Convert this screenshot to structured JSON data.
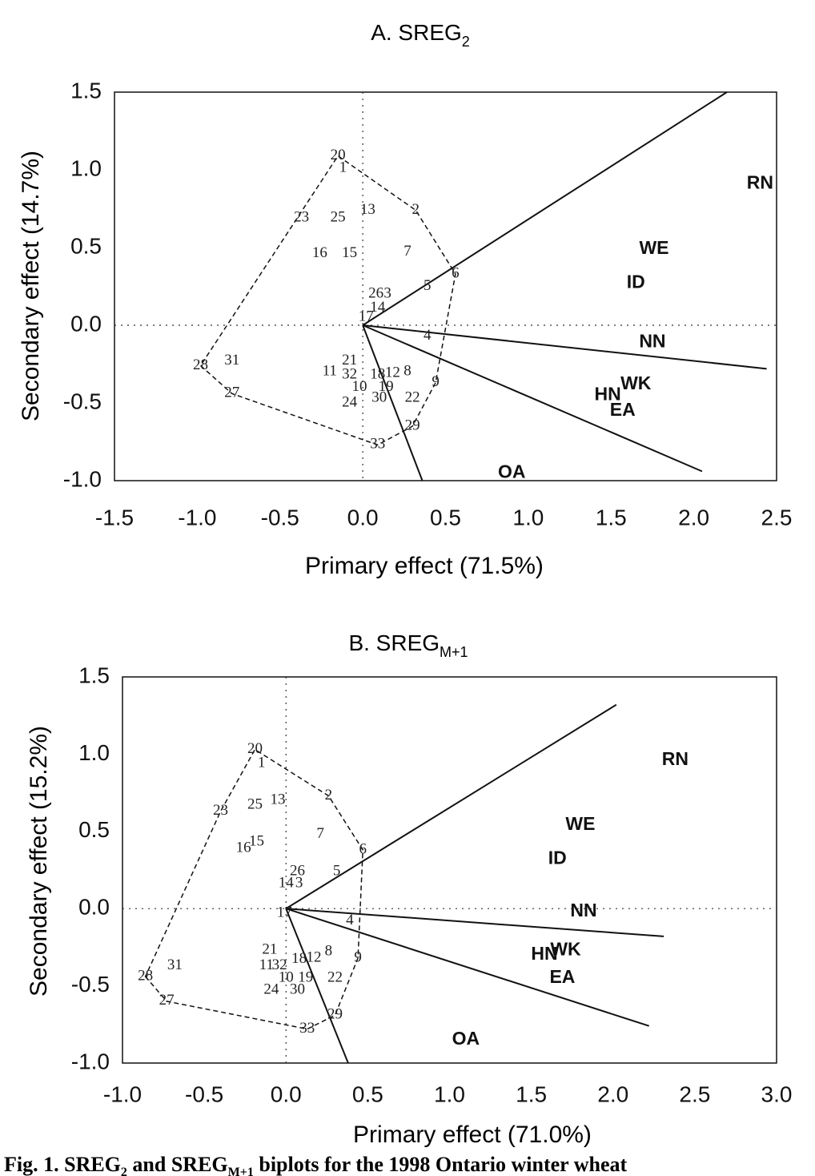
{
  "chart_data": [
    {
      "type": "biplot",
      "title": "A. SREG",
      "title_subscript": "2",
      "x_label": "Primary effect (71.5%)",
      "y_label": "Secondary effect (14.7%)",
      "xlim": [
        -1.5,
        2.5
      ],
      "ylim": [
        -1.0,
        1.5
      ],
      "xticks": [
        -1.5,
        {
          "value": -1,
          "label": "-1.0"
        },
        -0.5,
        {
          "value": 0,
          "label": "0.0"
        },
        0.5,
        {
          "value": 1,
          "label": "1.0"
        },
        1.5,
        {
          "value": 2,
          "label": "2.0"
        },
        2.5
      ],
      "yticks": [
        1.5,
        {
          "value": 1,
          "label": "1.0"
        },
        0.5,
        {
          "value": 0,
          "label": "0.0"
        },
        -0.5,
        {
          "value": -1,
          "label": "-1.0"
        }
      ],
      "genotypes": {
        "labels": [
          "20",
          "1",
          "2",
          "13",
          "23",
          "25",
          "16",
          "15",
          "7",
          "6",
          "5",
          "26",
          "3",
          "14",
          "17",
          "4",
          "28",
          "31",
          "21",
          "11",
          "32",
          "18",
          "12",
          "8",
          "9",
          "10",
          "19",
          "27",
          "24",
          "30",
          "22",
          "29",
          "33"
        ],
        "x": [
          -0.15,
          -0.12,
          0.32,
          0.03,
          -0.37,
          -0.15,
          -0.26,
          -0.08,
          0.27,
          0.56,
          0.39,
          0.08,
          0.15,
          0.09,
          0.02,
          0.39,
          -0.98,
          -0.79,
          -0.08,
          -0.2,
          -0.08,
          0.09,
          0.18,
          0.27,
          0.44,
          -0.02,
          0.14,
          -0.79,
          -0.08,
          0.1,
          0.3,
          0.3,
          0.09
        ],
        "y": [
          1.09,
          1.01,
          0.74,
          0.74,
          0.69,
          0.69,
          0.46,
          0.46,
          0.47,
          0.33,
          0.25,
          0.2,
          0.2,
          0.11,
          0.05,
          -0.07,
          -0.26,
          -0.23,
          -0.23,
          -0.3,
          -0.32,
          -0.32,
          -0.31,
          -0.3,
          -0.37,
          -0.4,
          -0.4,
          -0.44,
          -0.5,
          -0.47,
          -0.47,
          -0.65,
          -0.77
        ]
      },
      "environments": {
        "labels": [
          "RN",
          "WE",
          "ID",
          "NN",
          "WK",
          "HN",
          "EA",
          "OA"
        ],
        "x": [
          2.4,
          1.76,
          1.65,
          1.75,
          1.65,
          1.48,
          1.57,
          0.9
        ],
        "y": [
          0.91,
          0.49,
          0.27,
          -0.11,
          -0.38,
          -0.45,
          -0.55,
          -0.95
        ]
      },
      "vectors": {
        "x": [
          2.2,
          2.44,
          2.05,
          0.36
        ],
        "y": [
          1.5,
          -0.28,
          -0.94,
          -1.0
        ]
      }
    },
    {
      "type": "biplot",
      "title": "B. SREG",
      "title_subscript": "M+1",
      "x_label": "Primary effect (71.0%)",
      "y_label": "Secondary effect (15.2%)",
      "xlim": [
        -1.0,
        3.0
      ],
      "ylim": [
        -1.0,
        1.5
      ],
      "xticks": [
        {
          "value": -1,
          "label": "-1.0"
        },
        -0.5,
        {
          "value": 0,
          "label": "0.0"
        },
        0.5,
        {
          "value": 1,
          "label": "1.0"
        },
        1.5,
        {
          "value": 2,
          "label": "2.0"
        },
        2.5,
        {
          "value": 3,
          "label": "3.0"
        }
      ],
      "yticks": [
        1.5,
        {
          "value": 1,
          "label": "1.0"
        },
        0.5,
        {
          "value": 0,
          "label": "0.0"
        },
        -0.5,
        {
          "value": -1,
          "label": "-1.0"
        }
      ],
      "genotypes": {
        "labels": [
          "20",
          "1",
          "2",
          "13",
          "25",
          "23",
          "7",
          "16",
          "15",
          "6",
          "5",
          "26",
          "14",
          "3",
          "17",
          "4",
          "21",
          "11",
          "32",
          "18",
          "12",
          "8",
          "9",
          "10",
          "19",
          "22",
          "24",
          "30",
          "29",
          "33",
          "31",
          "28",
          "27"
        ],
        "x": [
          -0.19,
          -0.15,
          0.26,
          -0.05,
          -0.19,
          -0.4,
          0.21,
          -0.26,
          -0.18,
          0.47,
          0.31,
          0.07,
          0.0,
          0.08,
          -0.01,
          0.39,
          -0.1,
          -0.12,
          -0.04,
          0.08,
          0.17,
          0.26,
          0.44,
          0.0,
          0.12,
          0.3,
          -0.09,
          0.07,
          0.3,
          0.13,
          -0.68,
          -0.86,
          -0.73
        ],
        "y": [
          1.03,
          0.94,
          0.73,
          0.7,
          0.67,
          0.63,
          0.48,
          0.39,
          0.43,
          0.38,
          0.24,
          0.24,
          0.16,
          0.16,
          -0.03,
          -0.08,
          -0.27,
          -0.37,
          -0.37,
          -0.33,
          -0.32,
          -0.28,
          -0.32,
          -0.45,
          -0.45,
          -0.45,
          -0.53,
          -0.53,
          -0.69,
          -0.78,
          -0.37,
          -0.44,
          -0.6
        ]
      },
      "environments": {
        "labels": [
          "RN",
          "WE",
          "ID",
          "NN",
          "WK",
          "HN",
          "EA",
          "OA"
        ],
        "x": [
          2.38,
          1.8,
          1.66,
          1.82,
          1.71,
          1.58,
          1.69,
          1.1
        ],
        "y": [
          0.96,
          0.54,
          0.32,
          -0.02,
          -0.27,
          -0.3,
          -0.45,
          -0.85
        ]
      },
      "vectors": {
        "x": [
          2.02,
          2.31,
          2.22,
          0.38
        ],
        "y": [
          1.32,
          -0.18,
          -0.76,
          -1.0
        ]
      }
    }
  ],
  "caption": [
    {
      "text": "Fig. 1.  SREG"
    },
    {
      "text": "2",
      "sub": true
    },
    {
      "text": " and SREG"
    },
    {
      "text": "M+1",
      "sub": true
    },
    {
      "text": " biplots for the 1998 Ontario winter wheat"
    }
  ]
}
